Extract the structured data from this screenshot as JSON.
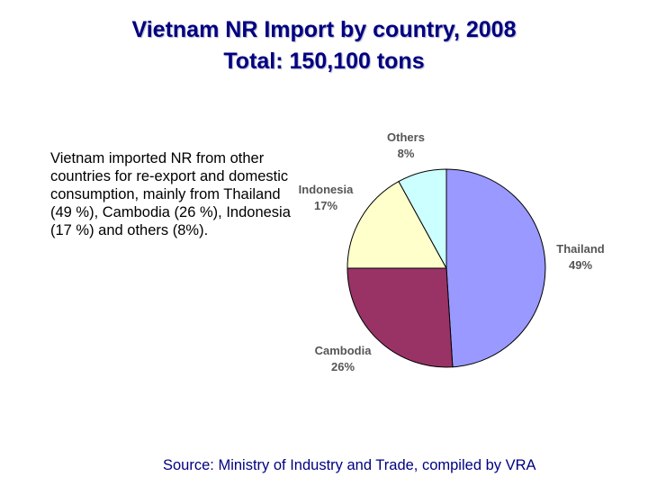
{
  "title_line1": "Vietnam NR Import by country, 2008",
  "title_line2": "Total: 150,100 tons",
  "description": "Vietnam imported NR from other countries for re-export and domestic consumption, mainly from Thailand (49 %), Cambodia (26 %), Indonesia (17 %) and others (8%).",
  "source": "Source: Ministry of Industry and Trade, compiled by VRA",
  "chart_data": {
    "type": "pie",
    "categories": [
      "Thailand",
      "Cambodia",
      "Indonesia",
      "Others"
    ],
    "values": [
      49,
      26,
      17,
      8
    ],
    "value_labels": [
      "49%",
      "26%",
      "17%",
      "8%"
    ],
    "colors": [
      "#9999FF",
      "#993366",
      "#FFFFCC",
      "#CCFFFF"
    ],
    "start": "12 o'clock, clockwise",
    "legend": "none (slice labels outside)"
  }
}
